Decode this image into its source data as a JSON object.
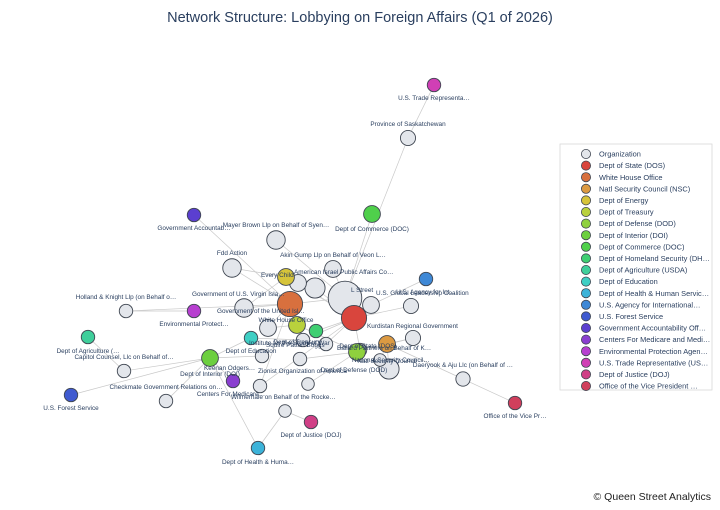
{
  "chart_data": {
    "type": "network",
    "title": "Network Structure: Lobbying on Foreign Affairs (Q1 of 2026)",
    "credit": "© Queen Street Analytics",
    "legend_placement": "right",
    "categories": [
      {
        "name": "Organization",
        "color": "#e3e6eb"
      },
      {
        "name": "Dept of State (DOS)",
        "color": "#d9453d"
      },
      {
        "name": "White House Office",
        "color": "#d8703e"
      },
      {
        "name": "Natl Security Council (NSC)",
        "color": "#dc9a42"
      },
      {
        "name": "Dept of Energy",
        "color": "#d6c43a"
      },
      {
        "name": "Dept of Treasury",
        "color": "#b9d13c"
      },
      {
        "name": "Dept of Defense (DOD)",
        "color": "#8fd13e"
      },
      {
        "name": "Dept of Interior (DOI)",
        "color": "#6ccf3f"
      },
      {
        "name": "Dept of Commerce (DOC)",
        "color": "#4fd04b"
      },
      {
        "name": "Dept of Homeland Security (DH…",
        "color": "#3fcf72"
      },
      {
        "name": "Dept of Agriculture (USDA)",
        "color": "#3fcf9b"
      },
      {
        "name": "Dept of Education",
        "color": "#3fcfc4"
      },
      {
        "name": "Dept of Health & Human Servic…",
        "color": "#3cb3d9"
      },
      {
        "name": "U.S. Agency for International…",
        "color": "#3e88d6"
      },
      {
        "name": "U.S. Forest Service",
        "color": "#3f5ad0"
      },
      {
        "name": "Government Accountability Off…",
        "color": "#5b3fd0"
      },
      {
        "name": "Centers For Medicare and Medi…",
        "color": "#8a3fd0"
      },
      {
        "name": "Environmental Protection Agen…",
        "color": "#b73fd0"
      },
      {
        "name": "U.S. Trade Representative (US…",
        "color": "#d03fb5"
      },
      {
        "name": "Dept of Justice (DOJ)",
        "color": "#d03f86"
      },
      {
        "name": "Office of the Vice President …",
        "color": "#d03f5c"
      }
    ],
    "nodes": [
      {
        "id": "dos",
        "label": "Dept of State (DOS)",
        "cat": 1,
        "size": 3
      },
      {
        "id": "wh",
        "label": "White House Office",
        "cat": 2,
        "size": 3
      },
      {
        "id": "nsc",
        "label": "Natl Security Council",
        "cat": 3,
        "size": 2
      },
      {
        "id": "energy",
        "label": "Dept of Energy",
        "cat": 4,
        "size": 2
      },
      {
        "id": "treasury",
        "label": "Dept of Treasury",
        "cat": 5,
        "size": 2
      },
      {
        "id": "dod",
        "label": "Dept of Defense (DOD)",
        "cat": 6,
        "size": 2
      },
      {
        "id": "doi",
        "label": "Dept of Interior (DOI)",
        "cat": 7,
        "size": 2
      },
      {
        "id": "doc",
        "label": "Dept of Commerce (DOC)",
        "cat": 8,
        "size": 2
      },
      {
        "id": "dhs",
        "label": "",
        "cat": 9,
        "size": 1.6
      },
      {
        "id": "usda",
        "label": "Dept of Agriculture (…",
        "cat": 10,
        "size": 1.6
      },
      {
        "id": "edu",
        "label": "Dept of Education",
        "cat": 11,
        "size": 1.6
      },
      {
        "id": "hhs",
        "label": "Dept of Health & Huma…",
        "cat": 12,
        "size": 1.6
      },
      {
        "id": "usaid",
        "label": "U.S. Agency for Int…",
        "cat": 13,
        "size": 1.6
      },
      {
        "id": "usfs",
        "label": "U.S. Forest Service",
        "cat": 14,
        "size": 1.6
      },
      {
        "id": "gao",
        "label": "Government Accountab…",
        "cat": 15,
        "size": 1.6
      },
      {
        "id": "cms",
        "label": "Centers For Medicare…",
        "cat": 16,
        "size": 1.6
      },
      {
        "id": "epa",
        "label": "Environmental Protect…",
        "cat": 17,
        "size": 1.6
      },
      {
        "id": "ustr",
        "label": "U.S. Trade Representa…",
        "cat": 18,
        "size": 1.6
      },
      {
        "id": "doj",
        "label": "Dept of Justice (DOJ)",
        "cat": 19,
        "size": 1.6
      },
      {
        "id": "ovp",
        "label": "Office of the Vice Pr…",
        "cat": 20,
        "size": 1.6
      },
      {
        "id": "hub",
        "label": "L Street",
        "cat": 0,
        "size": 4
      },
      {
        "id": "sask",
        "label": "Province of Saskatchewan",
        "cat": 0,
        "size": 1.8
      },
      {
        "id": "mayer",
        "label": "Mayer Brown Llp on Behalf of Syen…",
        "cat": 0,
        "size": 2.2
      },
      {
        "id": "akin",
        "label": "Akin Gump Llp on Behalf of Veon L…",
        "cat": 0,
        "size": 2
      },
      {
        "id": "fdd",
        "label": "Fdd Action",
        "cat": 0,
        "size": 2.2
      },
      {
        "id": "everyc",
        "label": "Every Child",
        "cat": 0,
        "size": 2
      },
      {
        "id": "american",
        "label": "American Israel Public Affairs Co…",
        "cat": 0,
        "size": 2.4
      },
      {
        "id": "govvi",
        "label": "Government of U.S. Virgin Isla…",
        "cat": 0,
        "size": 2.2
      },
      {
        "id": "govus",
        "label": "Government of the United Isl…",
        "cat": 0,
        "size": 2
      },
      {
        "id": "usglobal",
        "label": "U.S. Global Leadership Coalition",
        "cat": 0,
        "size": 2
      },
      {
        "id": "holland",
        "label": "Holland & Knight Llp (on Behalf o…",
        "cat": 0,
        "size": 1.6
      },
      {
        "id": "kurd",
        "label": "Kurdistan Regional Government",
        "cat": 0,
        "size": 1.8
      },
      {
        "id": "inst",
        "label": "Institute for the Study of War",
        "cat": 0,
        "size": 1.6
      },
      {
        "id": "capitol",
        "label": "Capitol Counsel, Llc on Behalf of…",
        "cat": 0,
        "size": 1.6
      },
      {
        "id": "bal",
        "label": "Ballard Partners on Behalf of K…",
        "cat": 0,
        "size": 1.8
      },
      {
        "id": "nscorg",
        "label": "National Security Council…",
        "cat": 0,
        "size": 1.6
      },
      {
        "id": "daer",
        "label": "Daeryook & Aju Llc (on Behalf of …",
        "cat": 0,
        "size": 1.7
      },
      {
        "id": "brown",
        "label": "Brownstein Hyatt",
        "cat": 0,
        "size": 2.4
      },
      {
        "id": "squire",
        "label": "Squire Patton Boggs",
        "cat": 0,
        "size": 1.6
      },
      {
        "id": "keenan",
        "label": "Keenan Odgers…",
        "cat": 0,
        "size": 1.6
      },
      {
        "id": "zionist",
        "label": "Zionist Organization of America",
        "cat": 0,
        "size": 1.6
      },
      {
        "id": "check",
        "label": "Checkmate Government Relations on…",
        "cat": 0,
        "size": 1.6
      },
      {
        "id": "wilmer",
        "label": "Wilmerhale on Behalf of the Rocke…",
        "cat": 0,
        "size": 1.5
      },
      {
        "id": "orgA",
        "label": "",
        "cat": 0,
        "size": 1.6
      },
      {
        "id": "orgB",
        "label": "",
        "cat": 0,
        "size": 1.5
      },
      {
        "id": "orgC",
        "label": "",
        "cat": 0,
        "size": 1.5
      }
    ],
    "edges": [
      [
        "ustr",
        "sask"
      ],
      [
        "sask",
        "hub"
      ],
      [
        "mayer",
        "hub"
      ],
      [
        "akin",
        "hub"
      ],
      [
        "fdd",
        "wh"
      ],
      [
        "gao",
        "wh"
      ],
      [
        "everyc",
        "dos"
      ],
      [
        "american",
        "dos"
      ],
      [
        "american",
        "energy"
      ],
      [
        "govvi",
        "wh"
      ],
      [
        "govus",
        "treasury"
      ],
      [
        "usglobal",
        "dos"
      ],
      [
        "usglobal",
        "usaid"
      ],
      [
        "holland",
        "epa"
      ],
      [
        "holland",
        "wh"
      ],
      [
        "kurd",
        "dos"
      ],
      [
        "inst",
        "edu"
      ],
      [
        "inst",
        "dos"
      ],
      [
        "capitol",
        "usda"
      ],
      [
        "capitol",
        "doi"
      ],
      [
        "bal",
        "nsc"
      ],
      [
        "bal",
        "dod"
      ],
      [
        "nscorg",
        "dos"
      ],
      [
        "daer",
        "ovp"
      ],
      [
        "daer",
        "nsc"
      ],
      [
        "brown",
        "nsc"
      ],
      [
        "squire",
        "dos"
      ],
      [
        "keenan",
        "doi"
      ],
      [
        "zionist",
        "dod"
      ],
      [
        "check",
        "doi"
      ],
      [
        "wilmer",
        "doj"
      ],
      [
        "wilmer",
        "hhs"
      ],
      [
        "usfs",
        "doi"
      ],
      [
        "cms",
        "doi"
      ],
      [
        "doc",
        "hub"
      ],
      [
        "hub",
        "dos"
      ],
      [
        "hub",
        "wh"
      ],
      [
        "energy",
        "dos"
      ],
      [
        "treasury",
        "dod"
      ],
      [
        "dhs",
        "dos"
      ],
      [
        "orgA",
        "dos"
      ],
      [
        "orgB",
        "dod"
      ],
      [
        "orgC",
        "nsc"
      ],
      [
        "govvi",
        "energy"
      ],
      [
        "fdd",
        "energy"
      ],
      [
        "govus",
        "wh"
      ],
      [
        "edu",
        "doi"
      ],
      [
        "hhs",
        "doi"
      ],
      [
        "orgA",
        "wh"
      ]
    ]
  }
}
